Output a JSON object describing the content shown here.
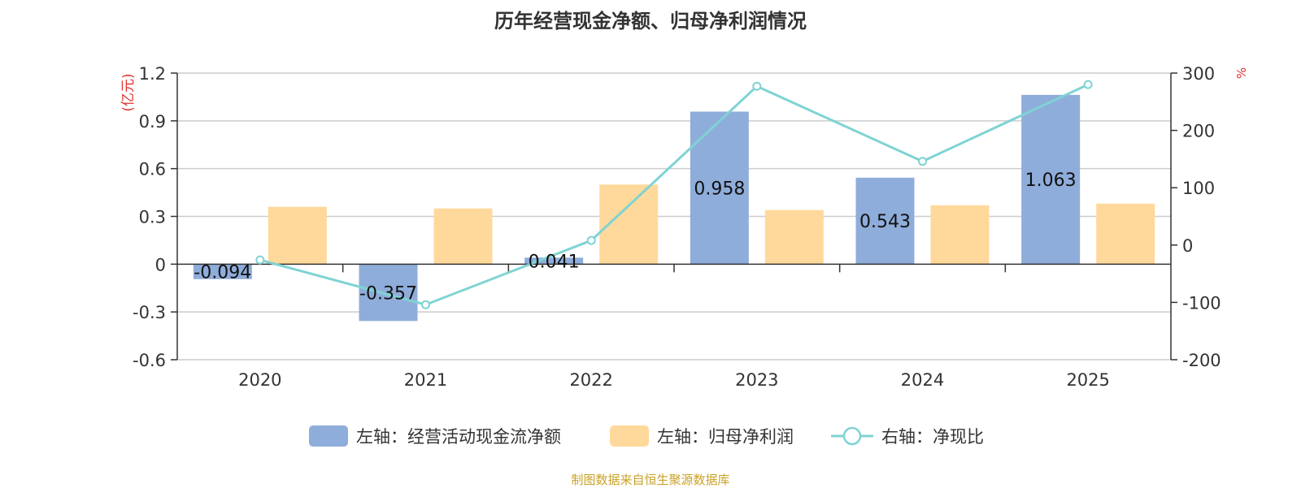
{
  "colors": {
    "cash": "#8fadda",
    "profit": "#ffd99b",
    "ratio": "#7fd3d3",
    "unit": "#e0322f",
    "source": "#c9a227"
  },
  "chart_data": {
    "type": "bar",
    "title": "历年经营现金净额、归母净利润情况",
    "categories": [
      "2020",
      "2021",
      "2022",
      "2023",
      "2024",
      "2025"
    ],
    "series": [
      {
        "name": "左轴：经营活动现金流净额",
        "type": "bar",
        "axis": "left",
        "values": [
          -0.094,
          -0.357,
          0.041,
          0.958,
          0.543,
          1.063
        ],
        "data_labels": [
          "-0.094",
          "-0.357",
          "0.041",
          "0.958",
          "0.543",
          "1.063"
        ]
      },
      {
        "name": "左轴：归母净利润",
        "type": "bar",
        "axis": "left",
        "values": [
          0.36,
          0.35,
          0.5,
          0.34,
          0.37,
          0.38
        ]
      },
      {
        "name": "右轴：净现比",
        "type": "line",
        "axis": "right",
        "values": [
          -26,
          -104,
          8,
          277,
          146,
          280
        ]
      }
    ],
    "left_axis": {
      "unit": "(亿元)",
      "ylim": [
        -0.6,
        1.2
      ],
      "ticks": [
        "-0.6",
        "-0.3",
        "0",
        "0.3",
        "0.6",
        "0.9",
        "1.2"
      ]
    },
    "right_axis": {
      "unit": "%",
      "ylim": [
        -200,
        300
      ],
      "ticks": [
        "-200",
        "-100",
        "0",
        "100",
        "200",
        "300"
      ]
    },
    "grid": true,
    "legend_position": "bottom"
  },
  "source": "制图数据来自恒生聚源数据库"
}
